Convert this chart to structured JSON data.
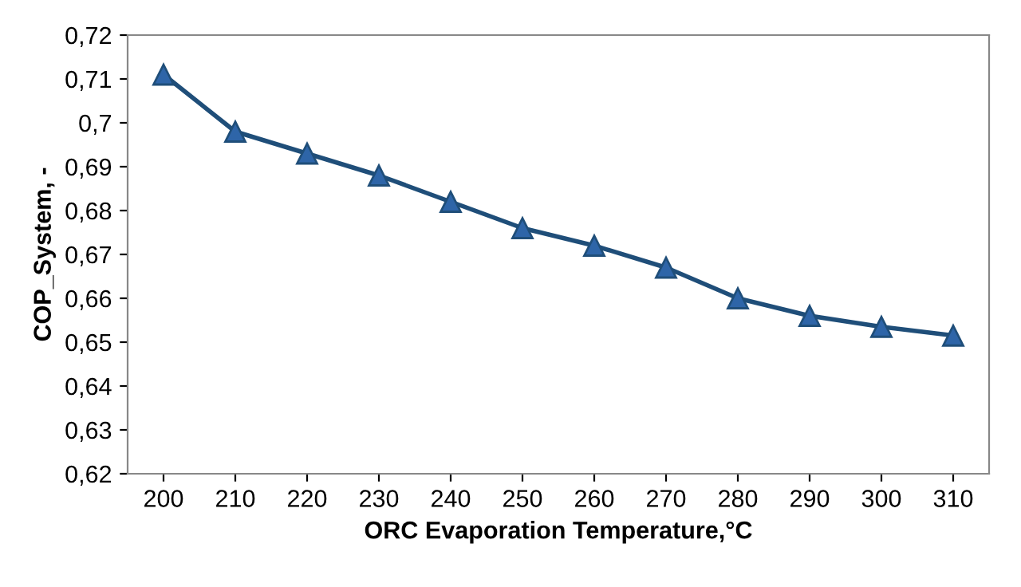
{
  "chart_data": {
    "type": "line",
    "xlabel": "ORC Evaporation Temperature,°C",
    "ylabel": "COP_System, -",
    "categories": [
      "200",
      "210",
      "220",
      "230",
      "240",
      "250",
      "260",
      "270",
      "280",
      "290",
      "300",
      "310"
    ],
    "series": [
      {
        "color": "#1f4e79",
        "values": [
          0.711,
          0.698,
          0.693,
          0.688,
          0.682,
          0.676,
          0.672,
          0.667,
          0.66,
          0.656,
          0.6535,
          0.6515
        ]
      }
    ],
    "ylim": [
      0.62,
      0.72
    ],
    "yticks": [
      {
        "value": 0.62,
        "label": "0,62"
      },
      {
        "value": 0.63,
        "label": "0,63"
      },
      {
        "value": 0.64,
        "label": "0,64"
      },
      {
        "value": 0.65,
        "label": "0,65"
      },
      {
        "value": 0.66,
        "label": "0,66"
      },
      {
        "value": 0.67,
        "label": "0,67"
      },
      {
        "value": 0.68,
        "label": "0,68"
      },
      {
        "value": 0.69,
        "label": "0,69"
      },
      {
        "value": 0.7,
        "label": "0,7"
      },
      {
        "value": 0.71,
        "label": "0,71"
      },
      {
        "value": 0.72,
        "label": "0,72"
      }
    ],
    "grid": false,
    "legend": false,
    "marker": "triangle",
    "line_style": "solid"
  }
}
